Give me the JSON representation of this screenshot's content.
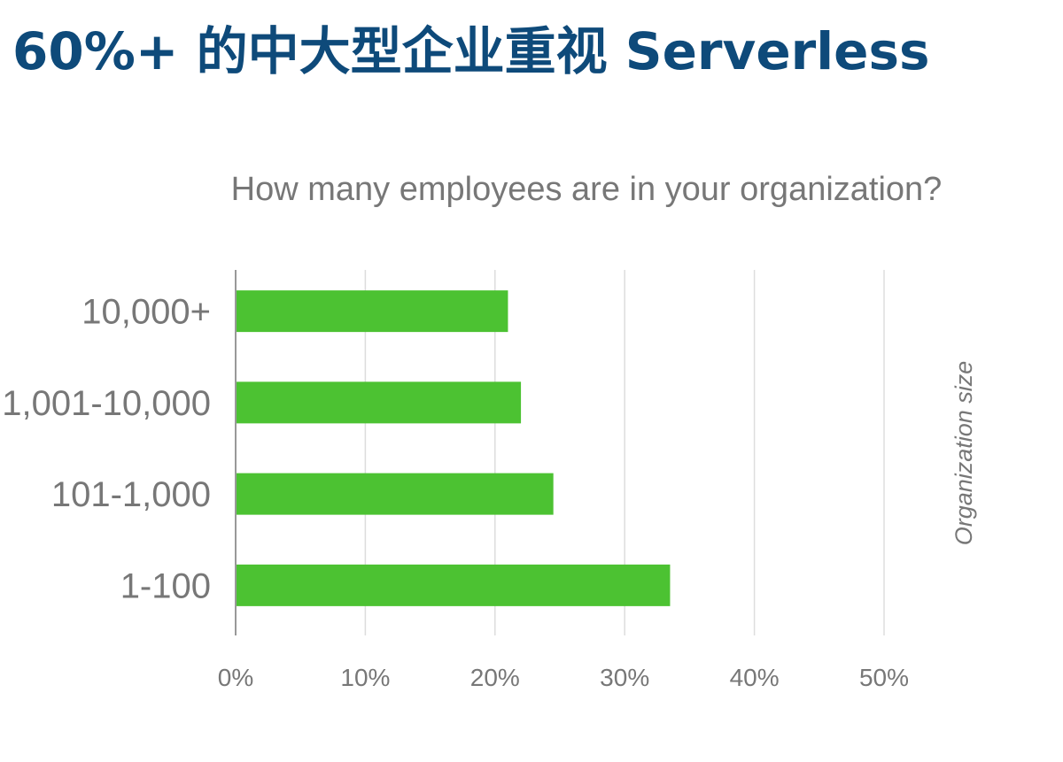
{
  "page": {
    "headline": "60%+ 的中大型企业重视 Serverless"
  },
  "colors": {
    "headline": "#0e4a7a",
    "bar": "#4cc232",
    "text": "#777777",
    "grid": "#dddddd",
    "axis": "#999999"
  },
  "chart_data": {
    "type": "bar",
    "orientation": "horizontal",
    "title": "How many employees are in your organization?",
    "xlabel": "",
    "ylabel": "Organization size",
    "categories": [
      "10,000+",
      "1,001-10,000",
      "101-1,000",
      "1-100"
    ],
    "values": [
      21,
      22,
      24.5,
      33.5
    ],
    "unit": "%",
    "xlim": [
      0,
      50
    ],
    "xticks": [
      "0%",
      "10%",
      "20%",
      "30%",
      "40%",
      "50%"
    ],
    "grid": true,
    "legend": "none"
  }
}
